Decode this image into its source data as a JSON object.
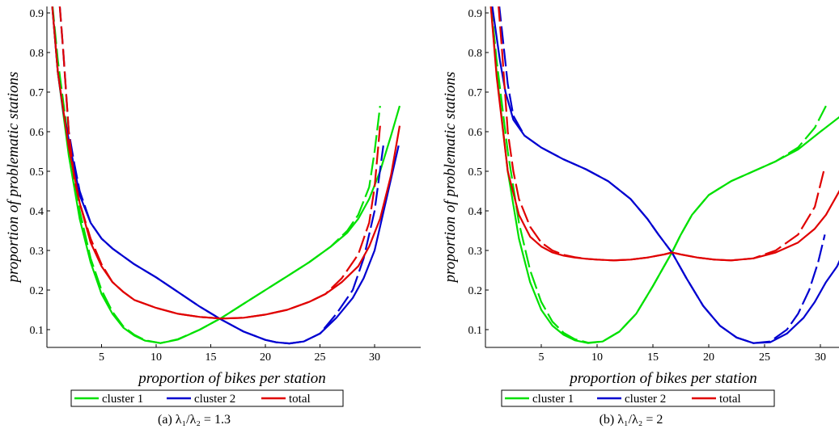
{
  "chart_data": [
    {
      "type": "line",
      "caption": "(a) λ₁/λ₂ = 1.3",
      "xlabel": "proportion of bikes per station",
      "ylabel": "proportion of problematic stations",
      "xlim": [
        0,
        32.5
      ],
      "ylim": [
        0.05,
        1.0
      ],
      "xticks": [
        "5",
        "10",
        "15",
        "20",
        "25",
        "30"
      ],
      "yticks": [
        "0.1",
        "0.2",
        "0.3",
        "0.4",
        "0.5",
        "0.6",
        "0.7",
        "0.8",
        "0.9"
      ],
      "legend": [
        "cluster 1",
        "cluster 2",
        "total"
      ],
      "colors": {
        "cluster 1": "#00e000",
        "cluster 2": "#0000d0",
        "total": "#e00000"
      },
      "series": [
        {
          "name": "cluster 1",
          "style": "solid",
          "x": [
            0.3,
            1.0,
            2.0,
            3.0,
            4.0,
            5.0,
            6.0,
            7.0,
            8.0,
            9.0,
            10.4,
            12.0,
            14.0,
            16.0,
            18.0,
            20.0,
            22.0,
            24.0,
            26.0,
            27.5,
            28.5,
            29.5,
            30.5,
            31.5,
            32.3
          ],
          "y": [
            0.98,
            0.75,
            0.54,
            0.38,
            0.27,
            0.19,
            0.14,
            0.105,
            0.085,
            0.072,
            0.066,
            0.075,
            0.1,
            0.13,
            0.165,
            0.2,
            0.235,
            0.27,
            0.31,
            0.345,
            0.38,
            0.43,
            0.5,
            0.59,
            0.665
          ]
        },
        {
          "name": "cluster 1",
          "style": "dashed",
          "x": [
            0.3,
            1.0,
            2.0,
            3.0,
            4.0,
            5.0,
            6.0,
            7.0,
            8.0,
            9.0,
            10.4,
            12.0,
            14.0,
            16.0,
            18.0,
            20.0,
            22.0,
            24.0,
            26.0,
            27.5,
            28.5,
            29.5,
            30.0,
            30.5
          ],
          "y": [
            0.98,
            0.78,
            0.57,
            0.4,
            0.28,
            0.2,
            0.145,
            0.108,
            0.087,
            0.073,
            0.066,
            0.076,
            0.1,
            0.13,
            0.165,
            0.2,
            0.235,
            0.27,
            0.31,
            0.35,
            0.39,
            0.46,
            0.55,
            0.665
          ]
        },
        {
          "name": "cluster 2",
          "style": "solid",
          "x": [
            0.3,
            1.0,
            1.5,
            2.0,
            3.0,
            4.0,
            5.0,
            6.0,
            8.0,
            10.0,
            12.0,
            14.0,
            16.0,
            18.0,
            20.0,
            21.0,
            22.2,
            23.5,
            25.0,
            26.5,
            28.0,
            29.0,
            30.0,
            31.0,
            32.2
          ],
          "y": [
            0.98,
            0.75,
            0.65,
            0.58,
            0.44,
            0.37,
            0.33,
            0.305,
            0.265,
            0.232,
            0.195,
            0.158,
            0.125,
            0.095,
            0.074,
            0.068,
            0.065,
            0.07,
            0.09,
            0.13,
            0.18,
            0.23,
            0.3,
            0.42,
            0.565
          ]
        },
        {
          "name": "cluster 2",
          "style": "dashed",
          "x": [
            1.0,
            1.5,
            2.0,
            2.5,
            3.0,
            4.0,
            5.0,
            6.0,
            8.0,
            10.0,
            12.0,
            14.0,
            16.0,
            18.0,
            20.0,
            21.0,
            22.2,
            23.5,
            25.0,
            26.5,
            28.0,
            29.0,
            30.0,
            30.8
          ],
          "y": [
            0.98,
            0.8,
            0.6,
            0.52,
            0.45,
            0.37,
            0.33,
            0.305,
            0.265,
            0.232,
            0.195,
            0.158,
            0.125,
            0.095,
            0.074,
            0.068,
            0.065,
            0.07,
            0.09,
            0.14,
            0.2,
            0.28,
            0.4,
            0.565
          ]
        },
        {
          "name": "total",
          "style": "solid",
          "x": [
            0.3,
            1.0,
            2.0,
            3.0,
            4.0,
            5.0,
            6.0,
            7.0,
            8.0,
            10.0,
            12.0,
            14.0,
            16.0,
            18.0,
            20.0,
            22.0,
            24.0,
            25.5,
            27.0,
            28.5,
            29.5,
            30.5,
            31.5,
            32.3
          ],
          "y": [
            0.98,
            0.75,
            0.56,
            0.42,
            0.32,
            0.26,
            0.22,
            0.195,
            0.175,
            0.155,
            0.14,
            0.132,
            0.128,
            0.13,
            0.138,
            0.15,
            0.17,
            0.19,
            0.22,
            0.26,
            0.31,
            0.38,
            0.49,
            0.615
          ]
        },
        {
          "name": "total",
          "style": "dashed",
          "x": [
            1.0,
            1.5,
            2.0,
            2.5,
            3.0,
            4.0,
            5.0,
            6.0,
            7.0,
            8.0,
            10.0,
            12.0,
            14.0,
            16.0,
            18.0,
            20.0,
            22.0,
            24.0,
            25.5,
            27.0,
            28.5,
            29.5,
            30.0,
            30.5
          ],
          "y": [
            0.98,
            0.8,
            0.6,
            0.48,
            0.42,
            0.33,
            0.265,
            0.22,
            0.195,
            0.175,
            0.155,
            0.14,
            0.132,
            0.128,
            0.13,
            0.138,
            0.15,
            0.17,
            0.19,
            0.23,
            0.29,
            0.37,
            0.46,
            0.615
          ]
        }
      ]
    },
    {
      "type": "line",
      "caption": "(b) λ₁/λ₂ = 2",
      "xlabel": "proportion of bikes per station",
      "ylabel": "proportion of problematic stations",
      "xlim": [
        0,
        32.5
      ],
      "ylim": [
        0.05,
        1.0
      ],
      "xticks": [
        "5",
        "10",
        "15",
        "20",
        "25",
        "30"
      ],
      "yticks": [
        "0.1",
        "0.2",
        "0.3",
        "0.4",
        "0.5",
        "0.6",
        "0.7",
        "0.8",
        "0.9"
      ],
      "legend": [
        "cluster 1",
        "cluster 2",
        "total"
      ],
      "colors": {
        "cluster 1": "#00e000",
        "cluster 2": "#0000d0",
        "total": "#e00000"
      },
      "series": [
        {
          "name": "cluster 1",
          "style": "solid",
          "x": [
            0.3,
            1.0,
            2.0,
            3.0,
            4.0,
            5.0,
            6.0,
            7.0,
            8.0,
            9.2,
            10.5,
            12.0,
            13.5,
            15.0,
            16.0,
            16.7,
            17.5,
            18.5,
            20.0,
            22.0,
            24.0,
            26.0,
            28.0,
            30.0,
            32.3
          ],
          "y": [
            0.98,
            0.75,
            0.5,
            0.33,
            0.22,
            0.15,
            0.11,
            0.087,
            0.073,
            0.066,
            0.07,
            0.095,
            0.14,
            0.21,
            0.26,
            0.295,
            0.34,
            0.39,
            0.44,
            0.475,
            0.5,
            0.525,
            0.555,
            0.6,
            0.65
          ]
        },
        {
          "name": "cluster 1",
          "style": "dashed",
          "x": [
            0.3,
            1.0,
            2.0,
            3.0,
            4.0,
            5.0,
            6.0,
            7.0,
            8.0,
            9.2,
            10.5,
            12.0,
            13.5,
            15.0,
            16.0,
            16.7,
            17.5,
            18.5,
            20.0,
            22.0,
            24.0,
            26.0,
            28.0,
            29.5,
            30.5
          ],
          "y": [
            0.98,
            0.78,
            0.55,
            0.37,
            0.25,
            0.17,
            0.12,
            0.092,
            0.076,
            0.067,
            0.07,
            0.095,
            0.14,
            0.21,
            0.26,
            0.295,
            0.34,
            0.39,
            0.44,
            0.475,
            0.5,
            0.525,
            0.56,
            0.61,
            0.665
          ]
        },
        {
          "name": "cluster 2",
          "style": "solid",
          "x": [
            0.3,
            0.8,
            1.3,
            1.8,
            2.5,
            3.5,
            5.0,
            7.0,
            9.0,
            11.0,
            13.0,
            14.5,
            15.5,
            16.7,
            18.0,
            19.5,
            21.0,
            22.5,
            24.0,
            25.5,
            27.0,
            28.5,
            29.5,
            30.5,
            31.5,
            32.3
          ],
          "y": [
            0.98,
            0.88,
            0.78,
            0.7,
            0.63,
            0.59,
            0.56,
            0.53,
            0.505,
            0.475,
            0.43,
            0.38,
            0.34,
            0.295,
            0.23,
            0.16,
            0.11,
            0.08,
            0.066,
            0.068,
            0.09,
            0.13,
            0.17,
            0.22,
            0.26,
            0.31
          ]
        },
        {
          "name": "cluster 2",
          "style": "dashed",
          "x": [
            1.0,
            1.5,
            2.0,
            2.5,
            3.5,
            5.0,
            7.0,
            9.0,
            11.0,
            13.0,
            14.5,
            15.5,
            16.7,
            18.0,
            19.5,
            21.0,
            22.5,
            24.0,
            25.5,
            27.0,
            28.0,
            29.0,
            29.8,
            30.4
          ],
          "y": [
            0.98,
            0.85,
            0.72,
            0.64,
            0.59,
            0.56,
            0.53,
            0.505,
            0.475,
            0.43,
            0.38,
            0.34,
            0.295,
            0.23,
            0.16,
            0.11,
            0.08,
            0.066,
            0.07,
            0.1,
            0.14,
            0.2,
            0.27,
            0.34
          ]
        },
        {
          "name": "total",
          "style": "solid",
          "x": [
            0.3,
            1.0,
            2.0,
            3.0,
            4.0,
            5.0,
            6.0,
            7.0,
            8.0,
            9.0,
            10.0,
            11.5,
            13.0,
            14.5,
            16.0,
            16.7,
            17.5,
            19.0,
            20.5,
            22.0,
            24.0,
            26.0,
            28.0,
            29.5,
            30.5,
            31.5,
            32.3
          ],
          "y": [
            0.98,
            0.74,
            0.5,
            0.39,
            0.335,
            0.31,
            0.295,
            0.287,
            0.282,
            0.279,
            0.277,
            0.275,
            0.277,
            0.282,
            0.29,
            0.295,
            0.29,
            0.282,
            0.277,
            0.275,
            0.28,
            0.295,
            0.32,
            0.355,
            0.39,
            0.44,
            0.48
          ]
        },
        {
          "name": "total",
          "style": "dashed",
          "x": [
            1.0,
            1.5,
            2.0,
            2.5,
            3.0,
            4.0,
            5.0,
            6.0,
            7.0,
            8.0,
            9.0,
            10.0,
            11.5,
            13.0,
            14.5,
            16.0,
            16.7,
            17.5,
            19.0,
            20.5,
            22.0,
            24.0,
            26.0,
            28.0,
            29.5,
            30.3
          ],
          "y": [
            0.98,
            0.8,
            0.6,
            0.5,
            0.43,
            0.36,
            0.32,
            0.3,
            0.289,
            0.283,
            0.279,
            0.277,
            0.275,
            0.277,
            0.282,
            0.29,
            0.295,
            0.29,
            0.282,
            0.277,
            0.275,
            0.28,
            0.3,
            0.34,
            0.41,
            0.5
          ]
        }
      ]
    }
  ]
}
